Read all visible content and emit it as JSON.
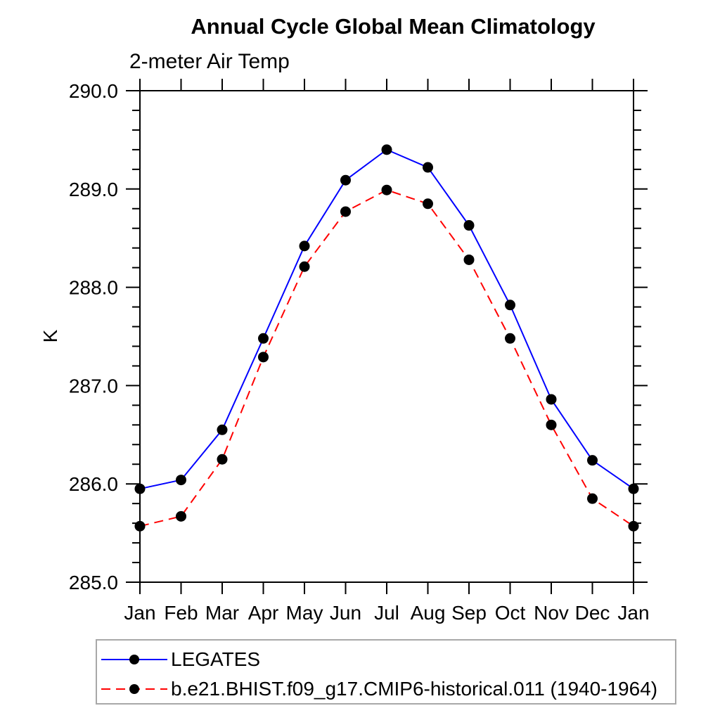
{
  "chart_data": {
    "type": "line",
    "title": "Annual Cycle Global Mean Climatology",
    "subtitle": "2-meter Air Temp",
    "ylabel": "K",
    "categories": [
      "Jan",
      "Feb",
      "Mar",
      "Apr",
      "May",
      "Jun",
      "Jul",
      "Aug",
      "Sep",
      "Oct",
      "Nov",
      "Dec",
      "Jan"
    ],
    "ylim": [
      285.0,
      290.0
    ],
    "ytick_major_interval": 1.0,
    "ytick_minor_interval": 0.2,
    "ytick_label_decimals": 1,
    "grid": false,
    "legend_position": "bottom-left",
    "axis_color": "#000000",
    "marker_color": "#000000",
    "series": [
      {
        "name": "LEGATES",
        "color": "#0000ff",
        "line_style": "solid",
        "marker": "circle",
        "values": [
          285.95,
          286.04,
          286.55,
          287.48,
          288.42,
          289.09,
          289.4,
          289.22,
          288.63,
          287.82,
          286.86,
          286.24,
          285.95
        ]
      },
      {
        "name": "b.e21.BHIST.f09_g17.CMIP6-historical.011 (1940-1964)",
        "color": "#ff0000",
        "line_style": "dashed",
        "marker": "circle",
        "values": [
          285.57,
          285.67,
          286.25,
          287.29,
          288.21,
          288.77,
          288.99,
          288.85,
          288.28,
          287.48,
          286.6,
          285.85,
          285.57
        ]
      }
    ]
  }
}
